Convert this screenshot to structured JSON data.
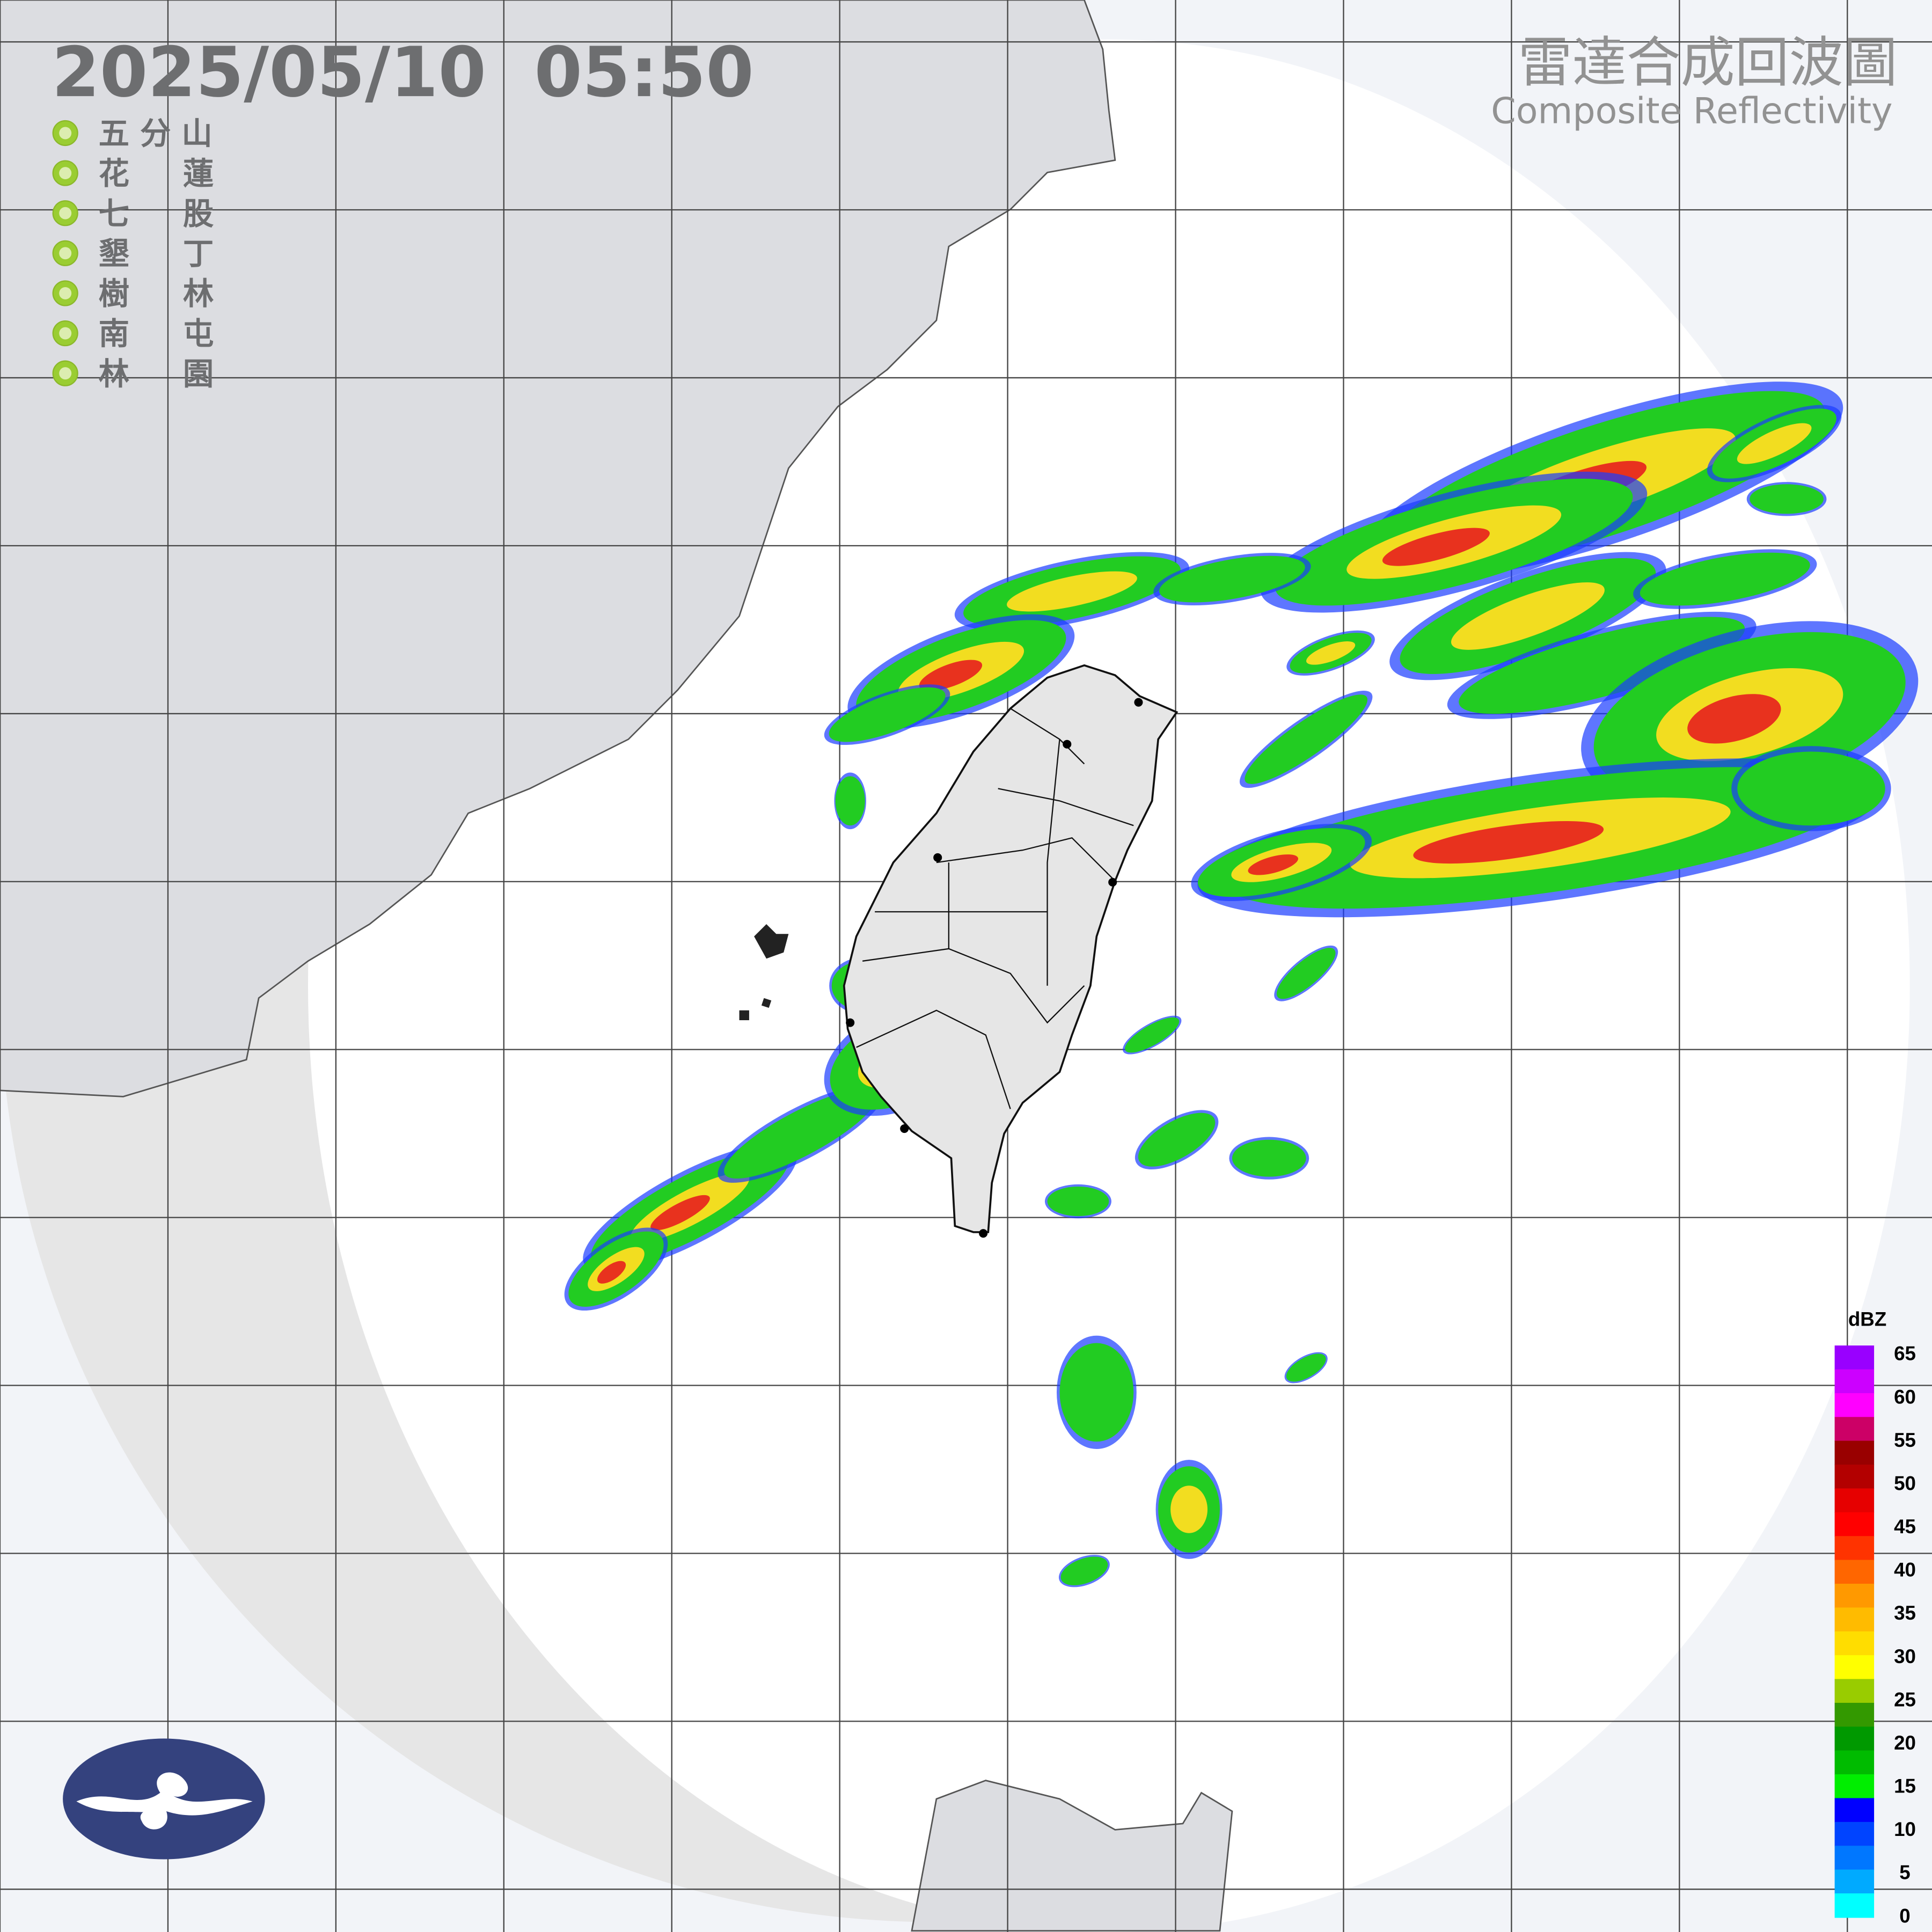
{
  "header": {
    "timestamp": "2025/05/10  05:50",
    "title_zh": "雷達合成回波圖",
    "title_en": "Composite Reflectivity"
  },
  "stations": [
    {
      "name": "五 分 山",
      "status_color": "#9acd32"
    },
    {
      "name": "花     蓮",
      "status_color": "#9acd32"
    },
    {
      "name": "七     股",
      "status_color": "#9acd32"
    },
    {
      "name": "墾     丁",
      "status_color": "#9acd32"
    },
    {
      "name": "樹     林",
      "status_color": "#9acd32"
    },
    {
      "name": "南     屯",
      "status_color": "#9acd32"
    },
    {
      "name": "林     園",
      "status_color": "#9acd32"
    }
  ],
  "legend": {
    "unit": "dBZ",
    "ticks": [
      "65",
      "60",
      "55",
      "50",
      "45",
      "40",
      "35",
      "30",
      "25",
      "20",
      "15",
      "10",
      "5",
      "0"
    ],
    "colors": [
      "#9900ff",
      "#cc00ff",
      "#ff00ff",
      "#cc0066",
      "#990000",
      "#b30000",
      "#e60000",
      "#ff0000",
      "#ff3300",
      "#ff6600",
      "#ff9900",
      "#ffbb00",
      "#ffdd00",
      "#ffff00",
      "#99cc00",
      "#339900",
      "#009900",
      "#00bb00",
      "#00ee00",
      "#0000ff",
      "#0044ff",
      "#0077ff",
      "#00aaff",
      "#00ffff"
    ]
  },
  "logo": {
    "name": "cwa-logo"
  }
}
